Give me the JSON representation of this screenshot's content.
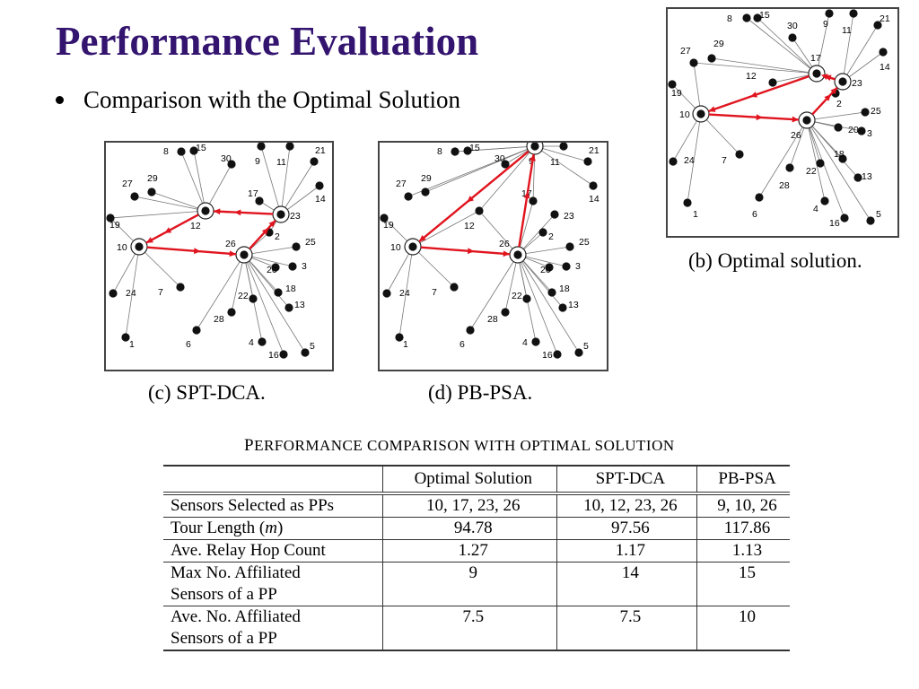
{
  "slide": {
    "title": "Performance Evaluation",
    "bullet": "Comparison with the Optimal Solution"
  },
  "figures": [
    {
      "id": "c",
      "caption": "(c) SPT-DCA."
    },
    {
      "id": "d",
      "caption": "(d) PB-PSA."
    },
    {
      "id": "b",
      "caption": "(b) Optimal solution."
    }
  ],
  "node_labels": [
    "1",
    "2",
    "3",
    "4",
    "5",
    "6",
    "7",
    "8",
    "9",
    "10",
    "11",
    "12",
    "13",
    "14",
    "15",
    "16",
    "17",
    "18",
    "19",
    "20",
    "21",
    "22",
    "23",
    "24",
    "25",
    "26",
    "27",
    "28",
    "29",
    "30"
  ],
  "table": {
    "caption_prefix": "P",
    "caption_rest": "ERFORMANCE COMPARISON WITH OPTIMAL SOLUTION",
    "headers": [
      "",
      "Optimal Solution",
      "SPT-DCA",
      "PB-PSA"
    ],
    "rows": [
      {
        "label": "Sensors Selected as PPs",
        "values": [
          "10, 17, 23, 26",
          "10, 12, 23, 26",
          "9, 10, 26"
        ]
      },
      {
        "label": "Tour Length (m)",
        "values": [
          "94.78",
          "97.56",
          "117.86"
        ]
      },
      {
        "label": " Max No. Affiliated\nSensors of a PP",
        "values": [
          "9",
          "14",
          "15"
        ]
      },
      {
        "label": "Ave. No. Affiliated\nSensors of a PP",
        "values": [
          "7.5",
          "7.5",
          "10"
        ]
      }
    ],
    "hop_row": {
      "label": "Ave. Relay Hop Count",
      "values": [
        "1.27",
        "1.17",
        "1.13"
      ]
    }
  },
  "colors": {
    "title": "#33146f",
    "tour": "#e0141e",
    "node": "#111111"
  }
}
